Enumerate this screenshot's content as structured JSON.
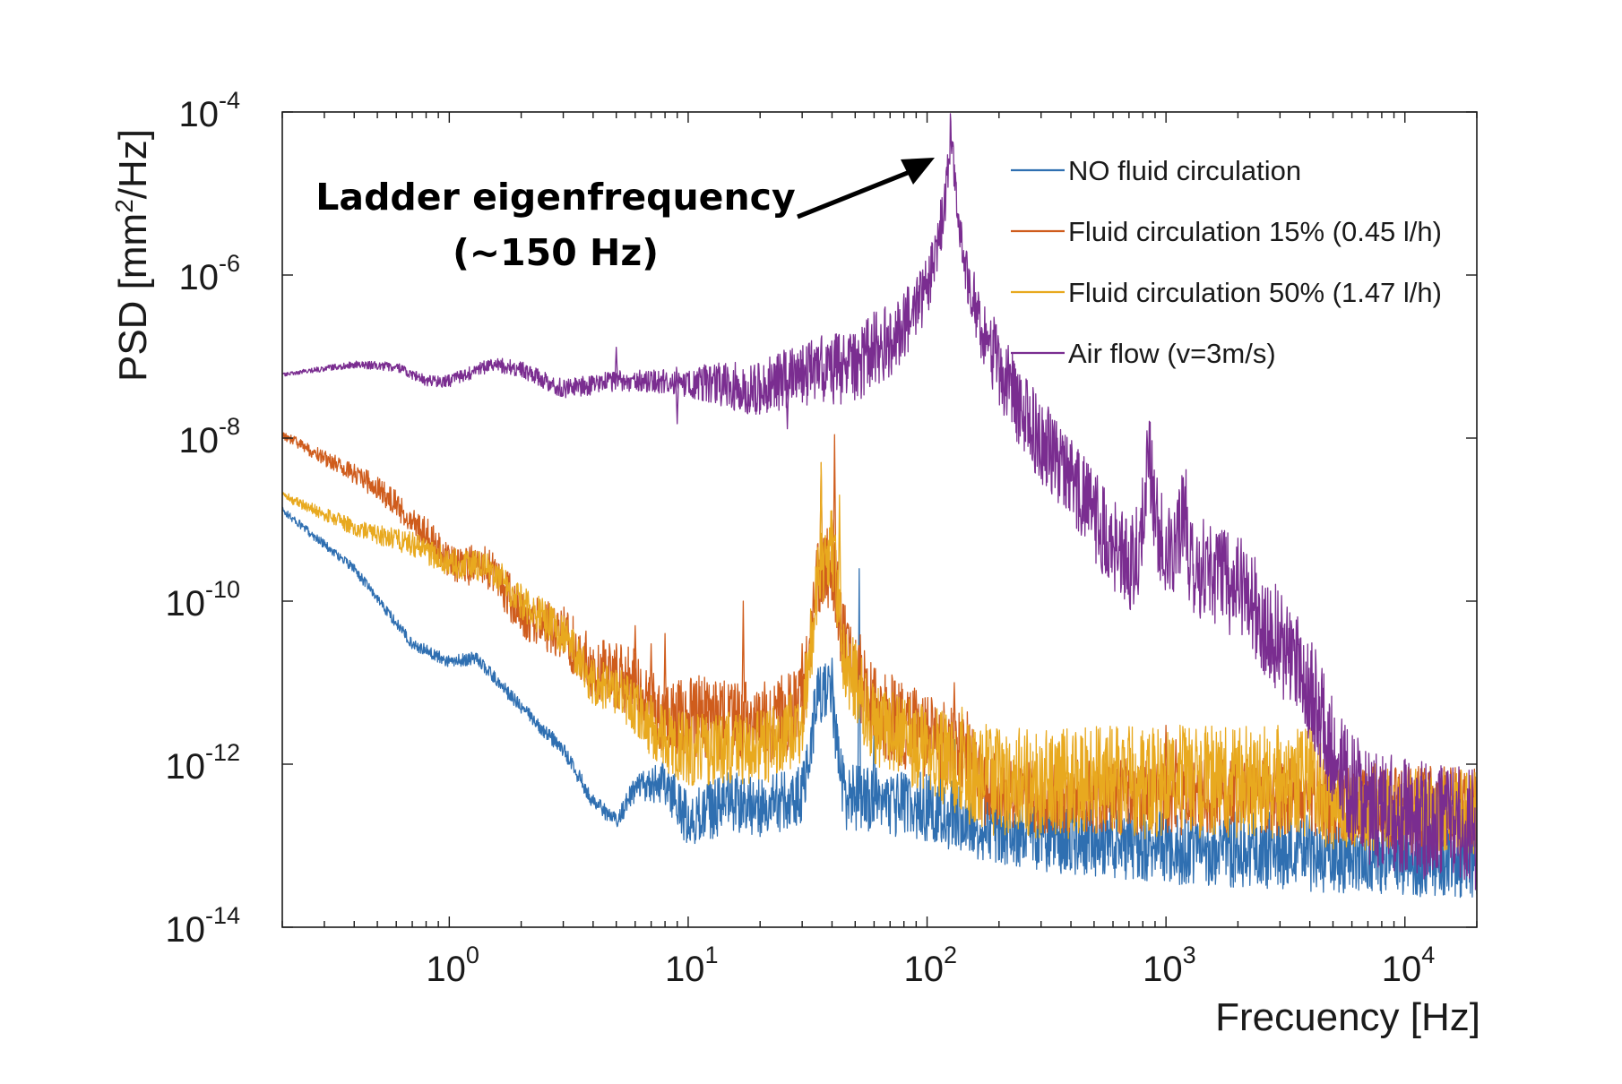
{
  "chart_data": {
    "type": "line",
    "xscale": "log",
    "yscale": "log",
    "xlim": [
      0.2,
      20000
    ],
    "ylim": [
      1e-14,
      0.0001
    ],
    "xlabel": "Frecuency [Hz]",
    "ylabel_parts": {
      "pre": "PSD [mm",
      "sup": "2",
      "post": "/Hz]"
    },
    "x_ticks": [
      {
        "base": "10",
        "exp": "0",
        "value": 1
      },
      {
        "base": "10",
        "exp": "1",
        "value": 10
      },
      {
        "base": "10",
        "exp": "2",
        "value": 100
      },
      {
        "base": "10",
        "exp": "3",
        "value": 1000
      },
      {
        "base": "10",
        "exp": "4",
        "value": 10000
      }
    ],
    "y_ticks": [
      {
        "base": "10",
        "exp": "-4",
        "value": 0.0001
      },
      {
        "base": "10",
        "exp": "-6",
        "value": 1e-06
      },
      {
        "base": "10",
        "exp": "-8",
        "value": 1e-08
      },
      {
        "base": "10",
        "exp": "-10",
        "value": 1e-10
      },
      {
        "base": "10",
        "exp": "-12",
        "value": 1e-12
      },
      {
        "base": "10",
        "exp": "-14",
        "value": 1e-14
      }
    ],
    "annotation": {
      "line1": "Ladder eigenfrequency",
      "line2": "(~150 Hz)",
      "arrow_target": {
        "x": 125,
        "y": 3e-05
      }
    },
    "legend_location": "upper right",
    "series": [
      {
        "name": "NO fluid circulation",
        "color": "#2f6fb1",
        "points": [
          [
            0.2,
            1.3e-09
          ],
          [
            0.4,
            2.5e-10
          ],
          [
            0.7,
            3e-11
          ],
          [
            1,
            1.8e-11
          ],
          [
            1.3,
            2e-11
          ],
          [
            2,
            5e-12
          ],
          [
            3,
            1.5e-12
          ],
          [
            4,
            3.5e-13
          ],
          [
            5,
            2e-13
          ],
          [
            6,
            5e-13
          ],
          [
            8,
            6e-13
          ],
          [
            10,
            2e-13
          ],
          [
            15,
            3.5e-13
          ],
          [
            20,
            3e-13
          ],
          [
            30,
            4e-13
          ],
          [
            35,
            8e-12
          ],
          [
            40,
            6e-12
          ],
          [
            45,
            4e-13
          ],
          [
            60,
            3.5e-13
          ],
          [
            100,
            3e-13
          ],
          [
            150,
            2e-13
          ],
          [
            300,
            1.3e-13
          ],
          [
            1000,
            1e-13
          ],
          [
            5000,
            8e-14
          ],
          [
            20000,
            7e-14
          ]
        ],
        "noise": [
          [
            0.2,
            0.05
          ],
          [
            5,
            0.1
          ],
          [
            10,
            0.35
          ],
          [
            40,
            0.4
          ],
          [
            200,
            0.45
          ],
          [
            20000,
            0.5
          ]
        ],
        "spikes": [
          [
            35,
            1.5e-11
          ],
          [
            40,
            2e-11
          ],
          [
            52,
            2.5e-10
          ],
          [
            60,
            3e-12
          ],
          [
            130,
            2e-12
          ]
        ]
      },
      {
        "name": "Fluid circulation 15% (0.45 l/h)",
        "color": "#cf5c1c",
        "points": [
          [
            0.2,
            1.1e-08
          ],
          [
            0.5,
            2.5e-09
          ],
          [
            0.8,
            7e-10
          ],
          [
            1,
            3e-10
          ],
          [
            1.5,
            2.5e-10
          ],
          [
            2,
            7e-11
          ],
          [
            3,
            4e-11
          ],
          [
            4,
            1.5e-11
          ],
          [
            6,
            1e-11
          ],
          [
            8,
            3e-12
          ],
          [
            10,
            4e-12
          ],
          [
            20,
            3e-12
          ],
          [
            30,
            5e-12
          ],
          [
            35,
            2e-10
          ],
          [
            40,
            3e-10
          ],
          [
            45,
            3e-11
          ],
          [
            60,
            5e-12
          ],
          [
            100,
            2e-12
          ],
          [
            150,
            1.5e-12
          ],
          [
            170,
            5e-13
          ],
          [
            300,
            4e-13
          ],
          [
            1000,
            4e-13
          ],
          [
            4000,
            4e-13
          ],
          [
            5000,
            3e-13
          ],
          [
            20000,
            3e-13
          ]
        ],
        "noise": [
          [
            0.2,
            0.05
          ],
          [
            5,
            0.4
          ],
          [
            10,
            0.5
          ],
          [
            100,
            0.55
          ],
          [
            170,
            0.45
          ],
          [
            20000,
            0.5
          ]
        ],
        "spikes": [
          [
            6,
            5e-11
          ],
          [
            7,
            3e-11
          ],
          [
            8,
            4e-11
          ],
          [
            12,
            1e-11
          ],
          [
            17,
            1e-10
          ],
          [
            30,
            3e-11
          ],
          [
            36,
            5e-09
          ],
          [
            41,
            1.1e-08
          ],
          [
            60,
            1.5e-11
          ],
          [
            90,
            8e-12
          ],
          [
            130,
            1e-11
          ],
          [
            1000,
            3e-12
          ],
          [
            1100,
            2e-12
          ]
        ]
      },
      {
        "name": "Fluid circulation 50% (1.47 l/h)",
        "color": "#e8a91f",
        "points": [
          [
            0.2,
            2e-09
          ],
          [
            0.4,
            8e-10
          ],
          [
            0.7,
            5e-10
          ],
          [
            1,
            3e-10
          ],
          [
            1.5,
            2.5e-10
          ],
          [
            2,
            1e-10
          ],
          [
            3,
            4e-11
          ],
          [
            4,
            1e-11
          ],
          [
            5,
            8e-12
          ],
          [
            8,
            2e-12
          ],
          [
            10,
            1.5e-12
          ],
          [
            20,
            1.5e-12
          ],
          [
            30,
            3e-12
          ],
          [
            35,
            2e-10
          ],
          [
            40,
            5e-10
          ],
          [
            45,
            2e-11
          ],
          [
            60,
            3e-12
          ],
          [
            100,
            1.5e-12
          ],
          [
            150,
            8e-13
          ],
          [
            200,
            6e-13
          ],
          [
            500,
            6e-13
          ],
          [
            1000,
            6e-13
          ],
          [
            4000,
            6e-13
          ],
          [
            5000,
            3e-13
          ],
          [
            20000,
            2.5e-13
          ]
        ],
        "noise": [
          [
            0.2,
            0.05
          ],
          [
            5,
            0.3
          ],
          [
            10,
            0.45
          ],
          [
            100,
            0.55
          ],
          [
            200,
            0.7
          ],
          [
            4000,
            0.7
          ],
          [
            5000,
            0.55
          ],
          [
            20000,
            0.55
          ]
        ],
        "spikes": [
          [
            36,
            5e-09
          ],
          [
            40,
            1e-09
          ],
          [
            43,
            2e-09
          ],
          [
            60,
            6e-12
          ],
          [
            120,
            4e-12
          ],
          [
            140,
            5e-12
          ]
        ]
      },
      {
        "name": "Air flow (v=3m/s)",
        "color": "#7a2d90",
        "points": [
          [
            0.2,
            6e-08
          ],
          [
            0.4,
            8e-08
          ],
          [
            0.6,
            7.5e-08
          ],
          [
            0.8,
            5e-08
          ],
          [
            1,
            5e-08
          ],
          [
            1.5,
            8e-08
          ],
          [
            2,
            7e-08
          ],
          [
            3,
            4e-08
          ],
          [
            5,
            5e-08
          ],
          [
            10,
            5e-08
          ],
          [
            20,
            4e-08
          ],
          [
            30,
            6e-08
          ],
          [
            50,
            8e-08
          ],
          [
            70,
            1.5e-07
          ],
          [
            90,
            4e-07
          ],
          [
            100,
            7e-07
          ],
          [
            110,
            2e-06
          ],
          [
            120,
            1e-05
          ],
          [
            125,
            5e-05
          ],
          [
            130,
            2e-05
          ],
          [
            140,
            2e-06
          ],
          [
            170,
            2e-07
          ],
          [
            250,
            2e-08
          ],
          [
            400,
            3e-09
          ],
          [
            600,
            5e-10
          ],
          [
            700,
            2.5e-10
          ],
          [
            780,
            5e-10
          ],
          [
            850,
            7e-09
          ],
          [
            900,
            1e-09
          ],
          [
            1000,
            4e-10
          ],
          [
            1100,
            3e-10
          ],
          [
            1200,
            2e-09
          ],
          [
            1250,
            3e-10
          ],
          [
            2000,
            1.5e-10
          ],
          [
            3000,
            3e-11
          ],
          [
            4000,
            8e-12
          ],
          [
            5000,
            1.5e-12
          ],
          [
            6000,
            5e-13
          ],
          [
            7000,
            3e-13
          ],
          [
            20000,
            1.5e-13
          ]
        ],
        "noise": [
          [
            0.2,
            0.02
          ],
          [
            8,
            0.15
          ],
          [
            20,
            0.35
          ],
          [
            60,
            0.5
          ],
          [
            130,
            0.3
          ],
          [
            200,
            0.5
          ],
          [
            1000,
            0.6
          ],
          [
            5000,
            0.7
          ],
          [
            20000,
            0.75
          ]
        ],
        "spikes": [
          [
            5,
            1.3e-07
          ],
          [
            9,
            1.5e-08
          ],
          [
            26,
            1.3e-08
          ]
        ]
      }
    ]
  }
}
